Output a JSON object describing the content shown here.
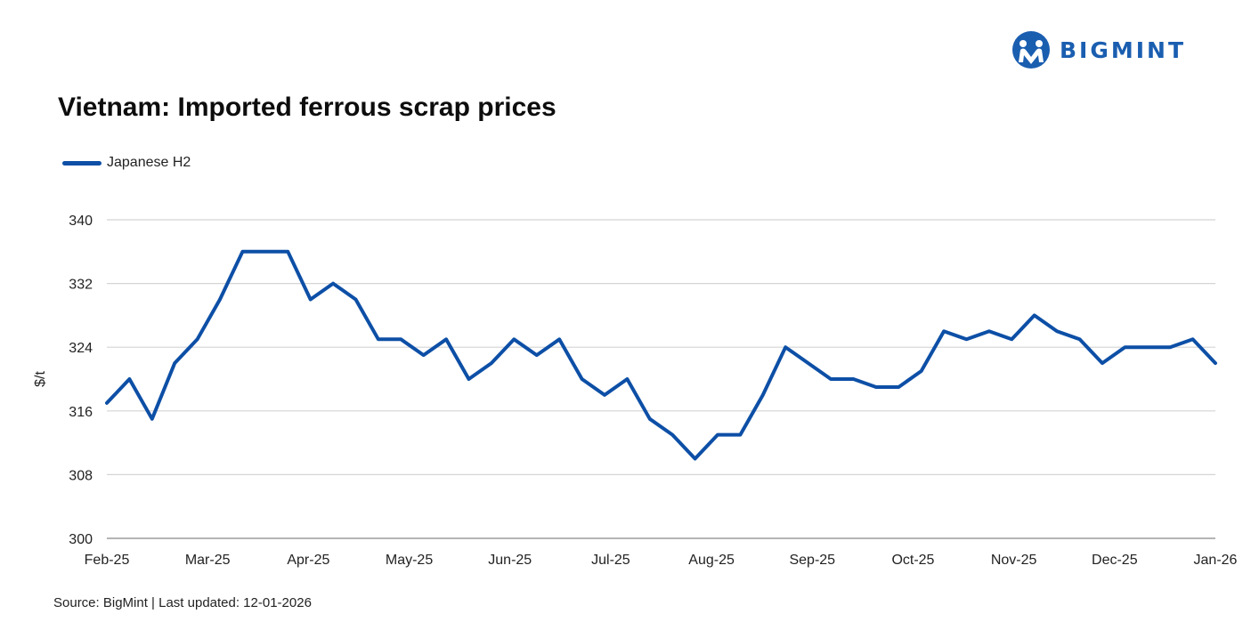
{
  "brand": {
    "name": "BIGMINT",
    "color": "#1a5eb0"
  },
  "source_note": "Source: BigMint | Last updated: 12-01-2026",
  "chart_data": {
    "type": "line",
    "title": "Vietnam: Imported ferrous scrap prices",
    "ylabel": "$/t",
    "xlabel": "",
    "ylim": [
      300,
      340
    ],
    "yticks": [
      300,
      308,
      316,
      324,
      332,
      340
    ],
    "grid": true,
    "legend_position": "top-left",
    "x_tick_labels": [
      "Feb-25",
      "Mar-25",
      "Apr-25",
      "May-25",
      "Jun-25",
      "Jul-25",
      "Aug-25",
      "Sep-25",
      "Oct-25",
      "Nov-25",
      "Dec-25",
      "Jan-26"
    ],
    "series": [
      {
        "name": "Japanese H2",
        "color": "#0d4fa6",
        "values": [
          317,
          320,
          315,
          322,
          325,
          330,
          336,
          336,
          336,
          330,
          332,
          330,
          325,
          325,
          323,
          325,
          320,
          322,
          325,
          323,
          325,
          320,
          318,
          320,
          315,
          313,
          310,
          313,
          313,
          318,
          324,
          322,
          320,
          320,
          319,
          319,
          321,
          326,
          325,
          326,
          325,
          328,
          326,
          325,
          322,
          324,
          324,
          324,
          325,
          322
        ]
      }
    ]
  }
}
